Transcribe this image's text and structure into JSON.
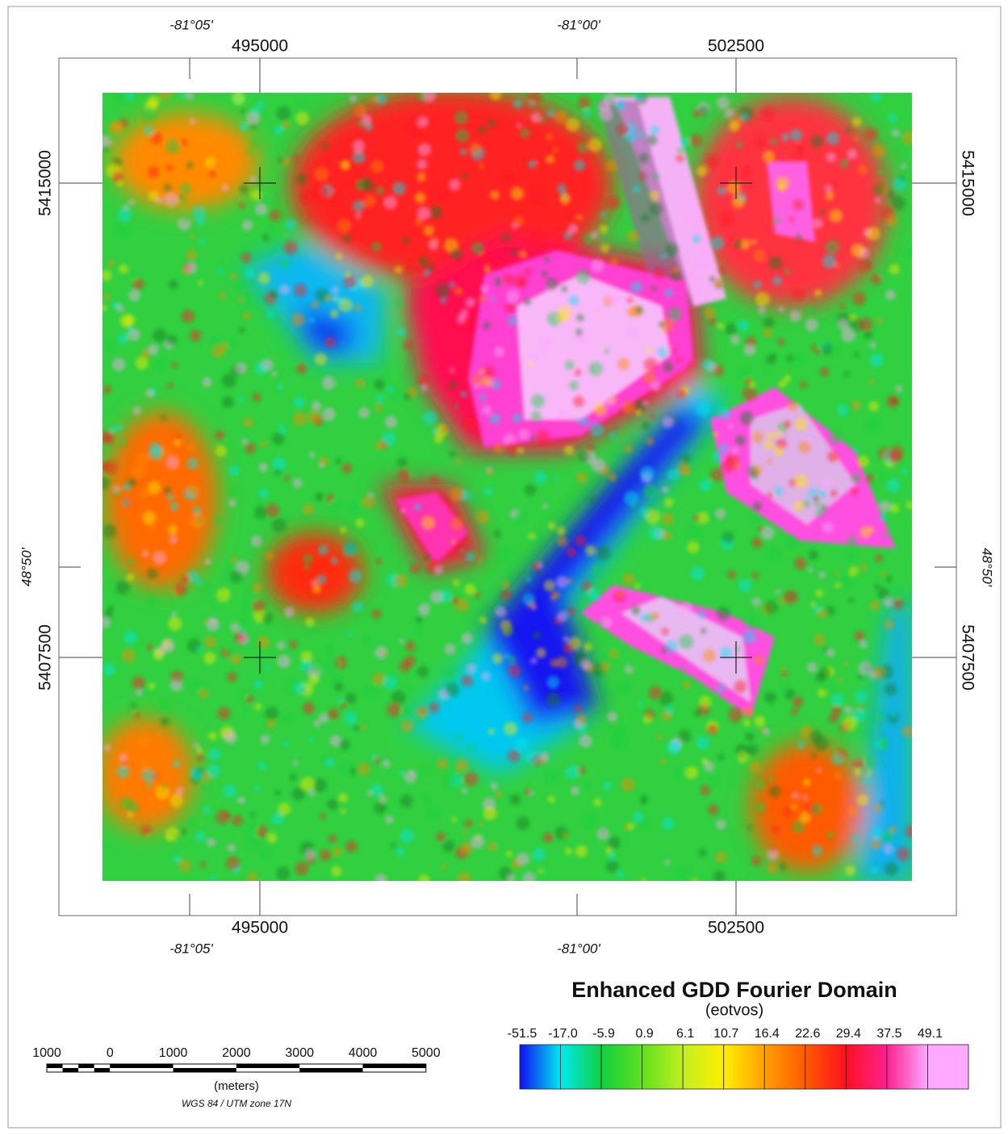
{
  "frame": {
    "top_degrees": [
      "-81°05'",
      "-81°00'"
    ],
    "top_utm": [
      "495000",
      "502500"
    ],
    "bottom_utm": [
      "495000",
      "502500"
    ],
    "bottom_degrees": [
      "-81°05'",
      "-81°00'"
    ],
    "left_utm": [
      "5415000",
      "5407500"
    ],
    "right_utm": [
      "5415000",
      "5407500"
    ],
    "left_degrees": [
      "48°50'"
    ],
    "right_degrees": [
      "48°50'"
    ]
  },
  "legend": {
    "title": "Enhanced GDD Fourier Domain",
    "unit": "(eotvos)",
    "labels": [
      "-51.5",
      "-17.0",
      "-5.9",
      "0.9",
      "6.1",
      "10.7",
      "16.4",
      "22.6",
      "29.4",
      "37.5",
      "49.1"
    ],
    "colors": [
      "#1010f0",
      "#00e8f0",
      "#10d040",
      "#60e020",
      "#c0f020",
      "#ffee00",
      "#ffa000",
      "#ff5a00",
      "#ff1020",
      "#ff2090",
      "#ffa8ff"
    ]
  },
  "scale_bar": {
    "labels": [
      "1000",
      "0",
      "1000",
      "2000",
      "3000",
      "4000",
      "5000"
    ],
    "unit": "(meters)",
    "projection": "WGS 84 / UTM zone 17N"
  }
}
